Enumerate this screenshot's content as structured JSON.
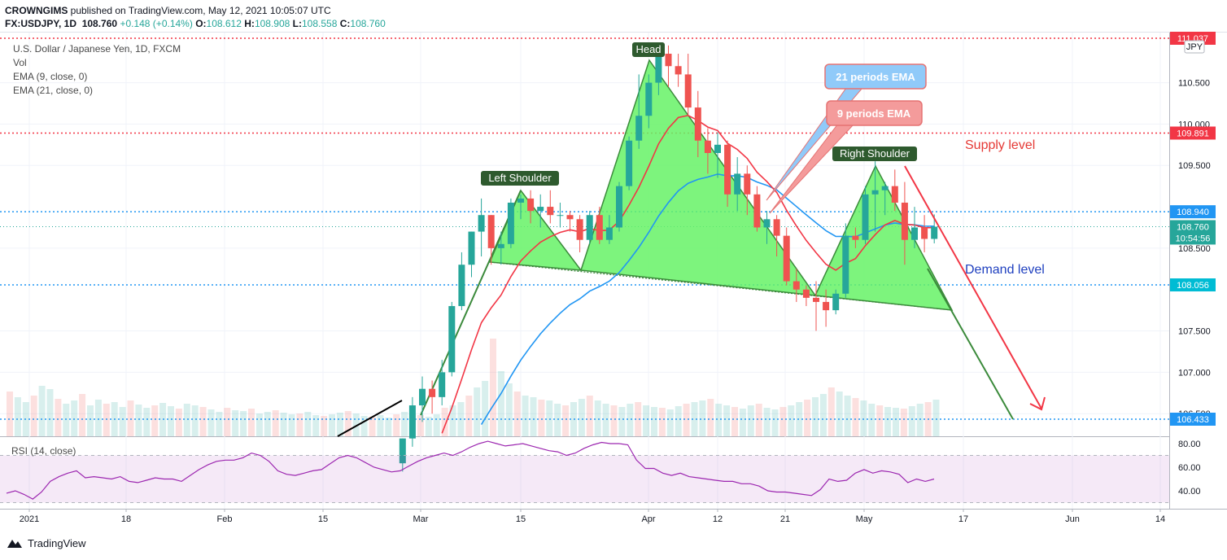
{
  "header": {
    "publisher": "CROWNGIMS",
    "published_text": " published on TradingView.com, May 12, 2021 10:05:07 UTC",
    "symbol": "FX:USDJPY, 1D",
    "last": "108.760",
    "change": "+0.148 (+0.14%)",
    "o_label": "O:",
    "o_val": "108.612",
    "h_label": "H:",
    "h_val": "108.908",
    "l_label": "L:",
    "l_val": "108.558",
    "c_label": "C:",
    "c_val": "108.760"
  },
  "legend": {
    "title": "U.S. Dollar / Japanese Yen, 1D, FXCM",
    "vol": "Vol",
    "ema9": "EMA (9, close, 0)",
    "ema21": "EMA (21, close, 0)",
    "rsi": "RSI (14, close)"
  },
  "currency_badge": "JPY",
  "footer": {
    "brand": "TradingView"
  },
  "annotations": {
    "head": "Head",
    "left_shoulder": "Left Shoulder",
    "right_shoulder": "Right Shoulder",
    "ema21_note": "21 periods EMA",
    "ema9_note": "9 periods EMA",
    "supply": "Supply level",
    "demand": "Demand level"
  },
  "colors": {
    "up": "#26a69a",
    "down": "#ef5350",
    "ema9": "#f23645",
    "ema21": "#2196f3",
    "pattern_fill": "#66f266",
    "rsi": "#9c27b0"
  },
  "chart_data": [
    {
      "type": "candlestick",
      "title": "U.S. Dollar / Japanese Yen, 1D, FXCM",
      "y_axis_ticks": [
        "110.500",
        "110.000",
        "109.500",
        "108.500",
        "107.500",
        "107.000",
        "106.500"
      ],
      "x_axis_ticks": [
        "2021",
        "18",
        "Feb",
        "15",
        "Mar",
        "15",
        "Apr",
        "12",
        "21",
        "May",
        "17",
        "Jun",
        "14"
      ],
      "price_labels": [
        {
          "label": "111.037",
          "value": 111.037,
          "color": "#f23645"
        },
        {
          "label": "109.891",
          "value": 109.891,
          "color": "#f23645"
        },
        {
          "label": "108.940",
          "value": 108.94,
          "color": "#2196f3"
        },
        {
          "label": "108.760",
          "value": 108.76,
          "color": "#26a69a"
        },
        {
          "label": "10:54:56",
          "value": 108.67,
          "color": "#26a69a"
        },
        {
          "label": "108.056",
          "value": 108.056,
          "color": "#00bcd4"
        },
        {
          "label": "106.433",
          "value": 106.433,
          "color": "#2196f3"
        }
      ],
      "ylim": [
        106.2,
        111.1
      ],
      "candles": [
        {
          "d": "Feb 25",
          "o": 105.9,
          "h": 106.2,
          "l": 105.8,
          "c": 106.2
        },
        {
          "d": "Feb 26",
          "o": 106.2,
          "h": 106.7,
          "l": 106.1,
          "c": 106.6
        },
        {
          "d": "Mar 1",
          "o": 106.6,
          "h": 106.95,
          "l": 106.4,
          "c": 106.8
        },
        {
          "d": "Mar 2",
          "o": 106.8,
          "h": 106.9,
          "l": 106.5,
          "c": 106.7
        },
        {
          "d": "Mar 3",
          "o": 106.7,
          "h": 107.15,
          "l": 106.6,
          "c": 107.0
        },
        {
          "d": "Mar 4",
          "o": 107.0,
          "h": 107.85,
          "l": 106.95,
          "c": 107.8
        },
        {
          "d": "Mar 5",
          "o": 107.8,
          "h": 108.45,
          "l": 107.75,
          "c": 108.3
        },
        {
          "d": "Mar 8",
          "o": 108.3,
          "h": 108.7,
          "l": 108.15,
          "c": 108.7
        },
        {
          "d": "Mar 9",
          "o": 108.7,
          "h": 109.1,
          "l": 108.4,
          "c": 108.9
        },
        {
          "d": "Mar 10",
          "o": 108.9,
          "h": 108.9,
          "l": 108.3,
          "c": 108.5
        },
        {
          "d": "Mar 11",
          "o": 108.5,
          "h": 108.7,
          "l": 108.3,
          "c": 108.55
        },
        {
          "d": "Mar 12",
          "o": 108.55,
          "h": 109.1,
          "l": 108.5,
          "c": 109.05
        },
        {
          "d": "Mar 15",
          "o": 109.05,
          "h": 109.15,
          "l": 108.85,
          "c": 109.1
        },
        {
          "d": "Mar 16",
          "o": 109.1,
          "h": 109.2,
          "l": 108.8,
          "c": 108.95
        },
        {
          "d": "Mar 17",
          "o": 108.95,
          "h": 109.15,
          "l": 108.75,
          "c": 109.0
        },
        {
          "d": "Mar 18",
          "o": 109.0,
          "h": 109.2,
          "l": 108.8,
          "c": 108.9
        },
        {
          "d": "Mar 19",
          "o": 108.9,
          "h": 109.05,
          "l": 108.75,
          "c": 108.9
        },
        {
          "d": "Mar 22",
          "o": 108.9,
          "h": 108.95,
          "l": 108.7,
          "c": 108.85
        },
        {
          "d": "Mar 23",
          "o": 108.85,
          "h": 108.9,
          "l": 108.45,
          "c": 108.6
        },
        {
          "d": "Mar 24",
          "o": 108.6,
          "h": 108.95,
          "l": 108.55,
          "c": 108.9
        },
        {
          "d": "Mar 25",
          "o": 108.9,
          "h": 109.0,
          "l": 108.55,
          "c": 108.6
        },
        {
          "d": "Mar 26",
          "o": 108.6,
          "h": 108.9,
          "l": 108.55,
          "c": 108.75
        },
        {
          "d": "Mar 29",
          "o": 108.75,
          "h": 109.3,
          "l": 108.7,
          "c": 109.25
        },
        {
          "d": "Mar 30",
          "o": 109.25,
          "h": 109.85,
          "l": 109.2,
          "c": 109.8
        },
        {
          "d": "Mar 31",
          "o": 109.8,
          "h": 110.6,
          "l": 109.7,
          "c": 110.1
        },
        {
          "d": "Apr 1",
          "o": 110.1,
          "h": 110.6,
          "l": 109.95,
          "c": 110.5
        },
        {
          "d": "Apr 2",
          "o": 110.5,
          "h": 110.9,
          "l": 110.35,
          "c": 110.85
        },
        {
          "d": "Apr 5",
          "o": 110.85,
          "h": 110.95,
          "l": 110.45,
          "c": 110.7
        },
        {
          "d": "Apr 6",
          "o": 110.7,
          "h": 110.85,
          "l": 110.45,
          "c": 110.6
        },
        {
          "d": "Apr 7",
          "o": 110.6,
          "h": 110.85,
          "l": 110.1,
          "c": 110.2
        },
        {
          "d": "Apr 8",
          "o": 110.2,
          "h": 110.4,
          "l": 109.6,
          "c": 109.8
        },
        {
          "d": "Apr 9",
          "o": 109.8,
          "h": 109.95,
          "l": 109.4,
          "c": 109.65
        },
        {
          "d": "Apr 12",
          "o": 109.65,
          "h": 109.9,
          "l": 109.35,
          "c": 109.75
        },
        {
          "d": "Apr 13",
          "o": 109.75,
          "h": 109.8,
          "l": 109.0,
          "c": 109.15
        },
        {
          "d": "Apr 14",
          "o": 109.15,
          "h": 109.6,
          "l": 108.95,
          "c": 109.4
        },
        {
          "d": "Apr 15",
          "o": 109.4,
          "h": 109.5,
          "l": 108.9,
          "c": 109.15
        },
        {
          "d": "Apr 16",
          "o": 109.15,
          "h": 109.25,
          "l": 108.7,
          "c": 108.75
        },
        {
          "d": "Apr 19",
          "o": 108.75,
          "h": 108.95,
          "l": 108.55,
          "c": 108.85
        },
        {
          "d": "Apr 20",
          "o": 108.85,
          "h": 108.9,
          "l": 108.4,
          "c": 108.65
        },
        {
          "d": "Apr 21",
          "o": 108.65,
          "h": 108.75,
          "l": 108.05,
          "c": 108.1
        },
        {
          "d": "Apr 22",
          "o": 108.1,
          "h": 108.25,
          "l": 107.85,
          "c": 108.0
        },
        {
          "d": "Apr 23",
          "o": 108.0,
          "h": 108.05,
          "l": 107.8,
          "c": 107.9
        },
        {
          "d": "Apr 26",
          "o": 107.9,
          "h": 108.1,
          "l": 107.5,
          "c": 107.85
        },
        {
          "d": "Apr 27",
          "o": 107.85,
          "h": 108.0,
          "l": 107.55,
          "c": 107.75
        },
        {
          "d": "Apr 28",
          "o": 107.75,
          "h": 108.0,
          "l": 107.7,
          "c": 107.95
        },
        {
          "d": "Apr 29",
          "o": 107.95,
          "h": 108.8,
          "l": 107.9,
          "c": 108.65
        },
        {
          "d": "Apr 30",
          "o": 108.65,
          "h": 108.75,
          "l": 108.5,
          "c": 108.6
        },
        {
          "d": "May 3",
          "o": 108.6,
          "h": 109.25,
          "l": 108.55,
          "c": 109.15
        },
        {
          "d": "May 4",
          "o": 109.15,
          "h": 109.55,
          "l": 108.7,
          "c": 109.2
        },
        {
          "d": "May 5",
          "o": 109.2,
          "h": 109.3,
          "l": 108.9,
          "c": 109.25
        },
        {
          "d": "May 6",
          "o": 109.25,
          "h": 109.45,
          "l": 108.95,
          "c": 109.05
        },
        {
          "d": "May 7",
          "o": 109.05,
          "h": 109.3,
          "l": 108.3,
          "c": 108.6
        },
        {
          "d": "May 10",
          "o": 108.6,
          "h": 109.0,
          "l": 108.5,
          "c": 108.75
        },
        {
          "d": "May 11",
          "o": 108.75,
          "h": 108.9,
          "l": 108.45,
          "c": 108.612
        },
        {
          "d": "May 12",
          "o": 108.612,
          "h": 108.908,
          "l": 108.558,
          "c": 108.76
        }
      ],
      "ema9_note": "EMA 9 and EMA 21 curves shown",
      "horizontal_levels": [
        111.037,
        109.891,
        108.94,
        108.056,
        106.433
      ]
    },
    {
      "type": "line",
      "title": "RSI (14, close)",
      "y_axis_ticks": [
        "80.00",
        "60.00",
        "40.00"
      ],
      "ylim": [
        28,
        84
      ],
      "bands": [
        30,
        70
      ],
      "values": [
        38,
        40,
        37,
        33,
        39,
        48,
        52,
        55,
        57,
        51,
        52,
        51,
        50,
        52,
        48,
        47,
        49,
        51,
        50,
        50,
        48,
        53,
        58,
        62,
        65,
        66,
        66,
        68,
        72,
        70,
        65,
        57,
        54,
        53,
        55,
        57,
        58,
        63,
        68,
        70,
        68,
        64,
        60,
        58,
        56,
        57,
        61,
        65,
        68,
        70,
        72,
        70,
        73,
        77,
        80,
        82,
        80,
        78,
        79,
        80,
        78,
        76,
        74,
        73,
        70,
        72,
        76,
        79,
        81,
        80,
        80,
        79,
        66,
        59,
        59,
        55,
        53,
        55,
        52,
        51,
        50,
        49,
        48,
        48,
        46,
        46,
        44,
        40,
        39,
        39,
        38,
        37,
        36,
        41,
        50,
        48,
        49,
        55,
        58,
        55,
        57,
        56,
        54,
        47,
        50,
        48,
        50
      ]
    }
  ]
}
